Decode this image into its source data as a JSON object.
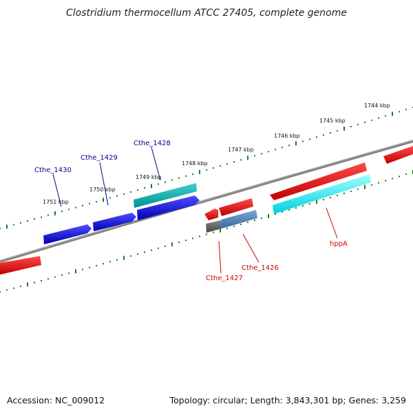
{
  "title": "Clostridium thermocellum ATCC 27405, complete genome",
  "footer": {
    "accession": "Accession: NC_009012",
    "stats": "Topology: circular; Length: 3,843,301 bp; Genes: 3,259"
  },
  "ruler": {
    "tick_color": "#1e7a1e",
    "labels": [
      "1744 kbp",
      "1745 kbp",
      "1746 kbp",
      "1747 kbp",
      "1748 kbp",
      "1749 kbp",
      "1750 kbp",
      "1751 kbp"
    ]
  },
  "genes": {
    "forward": [
      {
        "name": "Cthe_1430",
        "color": "#0000cc",
        "label_color": "#00008b"
      },
      {
        "name": "Cthe_1429",
        "color": "#0000cc",
        "label_color": "#00008b"
      },
      {
        "name": "Cthe_1428",
        "color": "#0000cc",
        "label_color": "#00008b"
      }
    ],
    "reverse": [
      {
        "name": "Cthe_1427",
        "color": "#555555",
        "label_color": "#cc0000"
      },
      {
        "name": "Cthe_1426",
        "color": "#4a7fb8",
        "label_color": "#cc0000"
      },
      {
        "name": "hppA",
        "color": "#00e5ee",
        "label_color": "#cc0000"
      }
    ],
    "forward_color": "#0000dd",
    "reverse_color": "#ee0000",
    "cds_color": "#10b8b8"
  },
  "backbone_color": "#808080"
}
